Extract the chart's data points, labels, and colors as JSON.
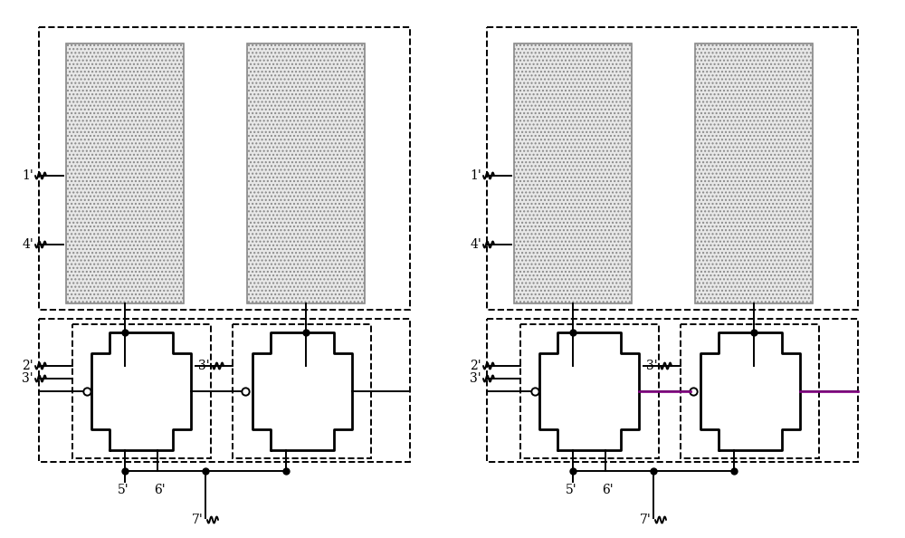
{
  "bg_color": "#ffffff",
  "line_color": "#000000",
  "purple_color": "#800080",
  "label_fontsize": 10,
  "lw": 1.4,
  "lw_thick": 2.0,
  "dot_size": 5,
  "hatch_fc": "#e8e8e8",
  "hatch_ec": "#888888"
}
